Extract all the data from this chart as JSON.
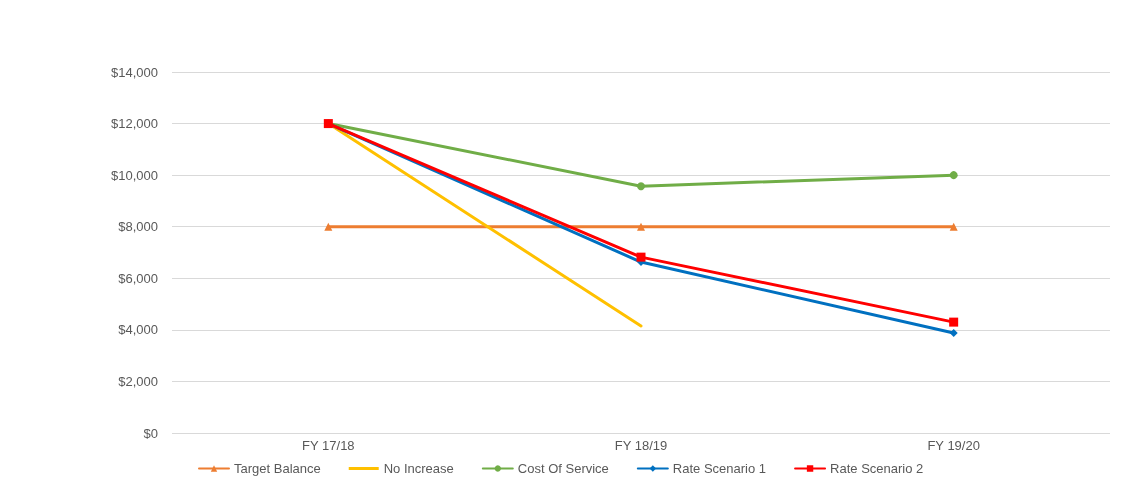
{
  "chart_data": {
    "type": "line",
    "categories": [
      "FY 17/18",
      "FY 18/19",
      "FY 19/20"
    ],
    "series": [
      {
        "name": "Target Balance",
        "color": "#ed7d31",
        "marker": "triangle",
        "values": [
          8000,
          8000,
          8000
        ]
      },
      {
        "name": "No Increase",
        "color": "#ffc000",
        "marker": "none",
        "values": [
          12000,
          4150,
          null
        ]
      },
      {
        "name": "Cost Of Service",
        "color": "#70ad47",
        "marker": "circle",
        "values": [
          12000,
          9570,
          10000
        ]
      },
      {
        "name": "Rate Scenario 1",
        "color": "#0070c0",
        "marker": "diamond",
        "values": [
          12000,
          6630,
          3880
        ]
      },
      {
        "name": "Rate Scenario 2",
        "color": "#ff0000",
        "marker": "square",
        "values": [
          12000,
          6820,
          4300
        ]
      }
    ],
    "ylim": [
      0,
      14000
    ],
    "yticks": [
      {
        "value": 0,
        "label": "$0"
      },
      {
        "value": 2000,
        "label": "$2,000"
      },
      {
        "value": 4000,
        "label": "$4,000"
      },
      {
        "value": 6000,
        "label": "$6,000"
      },
      {
        "value": 8000,
        "label": "$8,000"
      },
      {
        "value": 10000,
        "label": "$10,000"
      },
      {
        "value": 12000,
        "label": "$12,000"
      },
      {
        "value": 14000,
        "label": "$14,000"
      }
    ],
    "grid": "y",
    "legend": "bottom",
    "line_style": "solid"
  }
}
